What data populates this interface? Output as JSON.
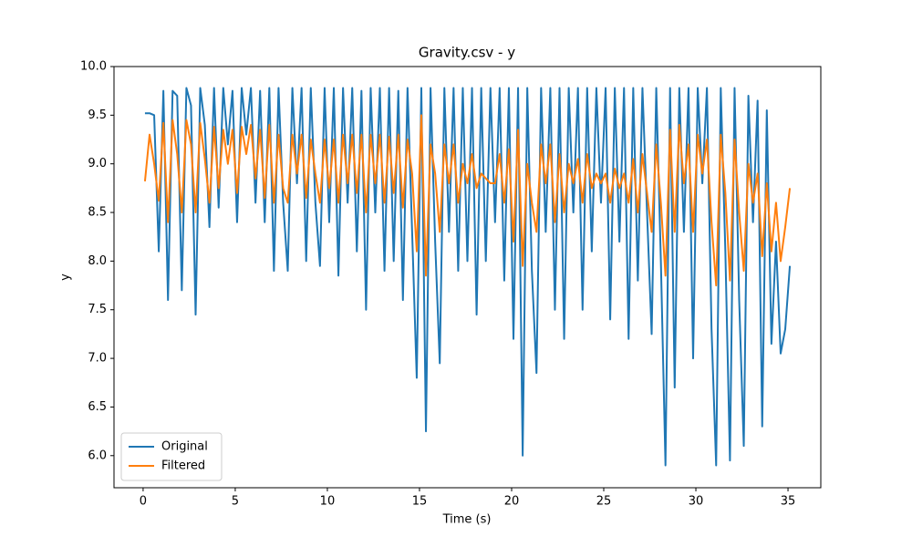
{
  "chart_data": {
    "type": "line",
    "title": "Gravity.csv - y",
    "x_label": "Time (s)",
    "y_label": "y",
    "x": [
      0.1,
      0.35,
      0.6,
      0.85,
      1.1,
      1.35,
      1.6,
      1.85,
      2.1,
      2.35,
      2.6,
      2.85,
      3.1,
      3.35,
      3.6,
      3.85,
      4.1,
      4.35,
      4.6,
      4.85,
      5.1,
      5.35,
      5.6,
      5.85,
      6.1,
      6.35,
      6.6,
      6.85,
      7.1,
      7.35,
      7.6,
      7.85,
      8.1,
      8.35,
      8.6,
      8.85,
      9.1,
      9.35,
      9.6,
      9.85,
      10.1,
      10.35,
      10.6,
      10.85,
      11.1,
      11.35,
      11.6,
      11.85,
      12.1,
      12.35,
      12.6,
      12.85,
      13.1,
      13.35,
      13.6,
      13.85,
      14.1,
      14.35,
      14.6,
      14.85,
      15.1,
      15.35,
      15.6,
      15.85,
      16.1,
      16.35,
      16.6,
      16.85,
      17.1,
      17.35,
      17.6,
      17.85,
      18.1,
      18.35,
      18.6,
      18.85,
      19.1,
      19.35,
      19.6,
      19.85,
      20.1,
      20.35,
      20.6,
      20.85,
      21.1,
      21.35,
      21.6,
      21.85,
      22.1,
      22.35,
      22.6,
      22.85,
      23.1,
      23.35,
      23.6,
      23.85,
      24.1,
      24.35,
      24.6,
      24.85,
      25.1,
      25.35,
      25.6,
      25.85,
      26.1,
      26.35,
      26.6,
      26.85,
      27.1,
      27.35,
      27.6,
      27.85,
      28.1,
      28.35,
      28.6,
      28.85,
      29.1,
      29.35,
      29.6,
      29.85,
      30.1,
      30.35,
      30.6,
      30.85,
      31.1,
      31.35,
      31.6,
      31.85,
      32.1,
      32.35,
      32.6,
      32.85,
      33.1,
      33.35,
      33.6,
      33.85,
      34.1,
      34.35,
      34.6,
      34.85,
      35.1
    ],
    "series": [
      {
        "name": "Original",
        "color": "#1f77b4",
        "values": [
          9.52,
          9.52,
          9.5,
          8.1,
          9.75,
          7.6,
          9.75,
          9.7,
          7.7,
          9.78,
          9.6,
          7.45,
          9.78,
          9.4,
          8.35,
          9.78,
          8.55,
          9.78,
          9.2,
          9.75,
          8.4,
          9.78,
          9.3,
          9.78,
          8.6,
          9.75,
          8.4,
          9.78,
          7.9,
          9.78,
          8.6,
          7.9,
          9.78,
          8.8,
          9.78,
          8.0,
          9.78,
          8.6,
          7.95,
          9.78,
          8.4,
          9.78,
          7.85,
          9.78,
          8.6,
          9.78,
          8.1,
          9.75,
          7.5,
          9.78,
          8.5,
          9.78,
          7.9,
          9.78,
          8.0,
          9.75,
          7.6,
          9.78,
          8.3,
          6.8,
          9.78,
          6.25,
          9.78,
          8.2,
          6.95,
          9.78,
          8.3,
          9.78,
          7.9,
          9.78,
          8.0,
          9.78,
          7.45,
          9.78,
          8.0,
          9.78,
          8.4,
          9.78,
          7.8,
          9.78,
          7.2,
          9.78,
          6.0,
          9.78,
          7.9,
          6.85,
          9.78,
          8.3,
          9.78,
          7.5,
          9.78,
          7.2,
          9.78,
          8.5,
          9.78,
          7.5,
          9.78,
          8.1,
          9.78,
          8.6,
          9.78,
          7.4,
          9.78,
          8.2,
          9.78,
          7.2,
          9.78,
          7.8,
          9.78,
          8.5,
          7.25,
          9.78,
          8.0,
          5.9,
          9.78,
          6.7,
          9.78,
          8.3,
          9.78,
          7.0,
          9.78,
          8.8,
          9.78,
          7.3,
          5.9,
          9.78,
          8.1,
          5.95,
          9.78,
          7.6,
          6.1,
          9.7,
          8.4,
          9.65,
          6.3,
          9.55,
          7.15,
          8.2,
          7.05,
          7.3,
          7.95
        ]
      },
      {
        "name": "Filtered",
        "color": "#ff7f0e",
        "values": [
          8.82,
          9.3,
          9.0,
          8.62,
          9.42,
          8.4,
          9.45,
          9.1,
          8.5,
          9.45,
          9.2,
          8.5,
          9.42,
          9.05,
          8.6,
          9.38,
          8.75,
          9.35,
          9.0,
          9.35,
          8.7,
          9.38,
          9.1,
          9.4,
          8.85,
          9.35,
          8.65,
          9.4,
          8.6,
          9.3,
          8.75,
          8.6,
          9.3,
          8.9,
          9.3,
          8.65,
          9.25,
          8.9,
          8.6,
          9.25,
          8.75,
          9.25,
          8.6,
          9.3,
          8.8,
          9.3,
          8.7,
          9.3,
          8.5,
          9.3,
          8.8,
          9.3,
          8.6,
          9.28,
          8.7,
          9.3,
          8.55,
          9.25,
          8.9,
          8.1,
          9.5,
          7.85,
          9.2,
          8.9,
          8.3,
          9.2,
          8.8,
          9.2,
          8.6,
          9.0,
          8.8,
          9.1,
          8.75,
          8.9,
          8.85,
          8.8,
          8.8,
          9.1,
          8.6,
          9.15,
          8.2,
          9.35,
          7.95,
          9.0,
          8.6,
          8.3,
          9.2,
          8.8,
          9.2,
          8.4,
          9.1,
          8.5,
          9.0,
          8.8,
          9.05,
          8.6,
          9.1,
          8.75,
          8.9,
          8.8,
          8.9,
          8.6,
          8.95,
          8.75,
          8.9,
          8.6,
          9.05,
          8.5,
          9.1,
          8.7,
          8.3,
          9.2,
          8.6,
          7.85,
          9.35,
          8.3,
          9.4,
          8.8,
          9.2,
          8.3,
          9.3,
          8.9,
          9.25,
          8.4,
          7.75,
          9.3,
          8.7,
          7.8,
          9.25,
          8.5,
          7.9,
          9.0,
          8.6,
          8.9,
          8.05,
          8.8,
          8.1,
          8.6,
          8.0,
          8.35,
          8.75
        ]
      }
    ],
    "xlim": [
      -1.58,
      36.78
    ],
    "xticks": [
      0,
      5,
      10,
      15,
      20,
      25,
      30,
      35
    ],
    "ylim": [
      5.67,
      10.0
    ],
    "yticks": [
      {
        "value": 6,
        "label": "6.0"
      },
      6.5,
      {
        "value": 7,
        "label": "7.0"
      },
      7.5,
      {
        "value": 8,
        "label": "8.0"
      },
      8.5,
      {
        "value": 9,
        "label": "9.0"
      },
      9.5,
      {
        "value": 10,
        "label": "10.0"
      }
    ],
    "legend": "lower left",
    "grid": false
  }
}
